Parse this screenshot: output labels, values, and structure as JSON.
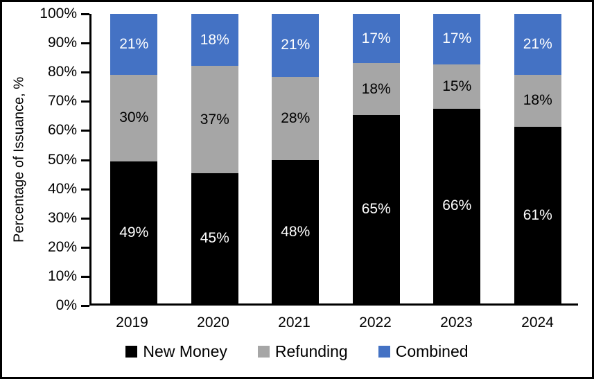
{
  "chart_data": {
    "type": "bar",
    "stacked": true,
    "orientation": "vertical",
    "categories": [
      "2019",
      "2020",
      "2021",
      "2022",
      "2023",
      "2024"
    ],
    "series": [
      {
        "name": "New Money",
        "color": "#000000",
        "label_color": "#ffffff",
        "values": [
          49,
          45,
          48,
          65,
          66,
          61
        ]
      },
      {
        "name": "Refunding",
        "color": "#a6a6a6",
        "label_color": "#000000",
        "values": [
          30,
          37,
          28,
          18,
          15,
          18
        ]
      },
      {
        "name": "Combined",
        "color": "#4472c4",
        "label_color": "#ffffff",
        "values": [
          21,
          18,
          21,
          17,
          17,
          21
        ]
      }
    ],
    "title": "",
    "xlabel": "",
    "ylabel": "Percentage of Issuance, %",
    "ylim": [
      0,
      100
    ],
    "ytick_step": 10,
    "ytick_labels": [
      "0%",
      "10%",
      "20%",
      "30%",
      "40%",
      "50%",
      "60%",
      "70%",
      "80%",
      "90%",
      "100%"
    ],
    "value_suffix": "%",
    "grid": false,
    "legend_position": "bottom"
  },
  "colors": {
    "axis": "#000000",
    "background": "#ffffff",
    "border": "#000000"
  }
}
